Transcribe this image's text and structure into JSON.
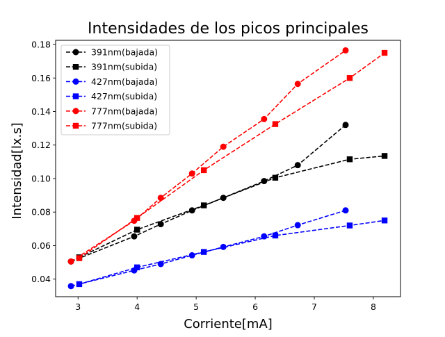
{
  "chart_data": {
    "type": "line",
    "title": "Intensidades de los picos principales",
    "xlabel": "Corriente[mA]",
    "ylabel": "Intensidad[lx.s]",
    "xlim": [
      2.62,
      8.46
    ],
    "ylim": [
      0.0295,
      0.1825
    ],
    "xticks": [
      3,
      4,
      5,
      6,
      7,
      8
    ],
    "yticks": [
      0.04,
      0.06,
      0.08,
      0.1,
      0.12,
      0.14,
      0.16,
      0.18
    ],
    "ytick_labels": [
      "0.04",
      "0.06",
      "0.08",
      "0.10",
      "0.12",
      "0.14",
      "0.16",
      "0.18"
    ],
    "grid": false,
    "legend_position": "top-left",
    "series": [
      {
        "name": "391nm(bajada)",
        "color": "#000000",
        "marker": "circle",
        "linestyle": "dashed",
        "x": [
          2.88,
          3.95,
          4.4,
          4.93,
          5.46,
          6.15,
          6.72,
          7.53
        ],
        "y": [
          0.0505,
          0.0655,
          0.0728,
          0.081,
          0.0885,
          0.0985,
          0.108,
          0.132
        ]
      },
      {
        "name": "391nm(subida)",
        "color": "#000000",
        "marker": "square",
        "linestyle": "dashed",
        "x": [
          3.02,
          4.0,
          5.13,
          6.34,
          7.6,
          8.19
        ],
        "y": [
          0.053,
          0.0695,
          0.084,
          0.1005,
          0.1115,
          0.1135
        ]
      },
      {
        "name": "427nm(bajada)",
        "color": "#0000ff",
        "marker": "circle",
        "linestyle": "dashed",
        "x": [
          2.88,
          3.95,
          4.4,
          4.93,
          5.46,
          6.15,
          6.72,
          7.53
        ],
        "y": [
          0.0358,
          0.0452,
          0.049,
          0.0542,
          0.0592,
          0.0655,
          0.0722,
          0.081
        ]
      },
      {
        "name": "427nm(subida)",
        "color": "#0000ff",
        "marker": "square",
        "linestyle": "dashed",
        "x": [
          3.02,
          4.0,
          5.13,
          6.34,
          7.6,
          8.19
        ],
        "y": [
          0.037,
          0.047,
          0.0562,
          0.066,
          0.072,
          0.075
        ]
      },
      {
        "name": "777nm(bajada)",
        "color": "#ff0000",
        "marker": "circle",
        "linestyle": "dashed",
        "x": [
          2.88,
          3.95,
          4.4,
          4.93,
          5.46,
          6.15,
          6.72,
          7.53
        ],
        "y": [
          0.0505,
          0.0748,
          0.0885,
          0.103,
          0.119,
          0.1355,
          0.1565,
          0.1765
        ]
      },
      {
        "name": "777nm(subida)",
        "color": "#ff0000",
        "marker": "square",
        "linestyle": "dashed",
        "x": [
          3.02,
          4.0,
          5.13,
          6.34,
          7.6,
          8.19
        ],
        "y": [
          0.0525,
          0.0765,
          0.105,
          0.1325,
          0.16,
          0.175
        ]
      }
    ]
  }
}
